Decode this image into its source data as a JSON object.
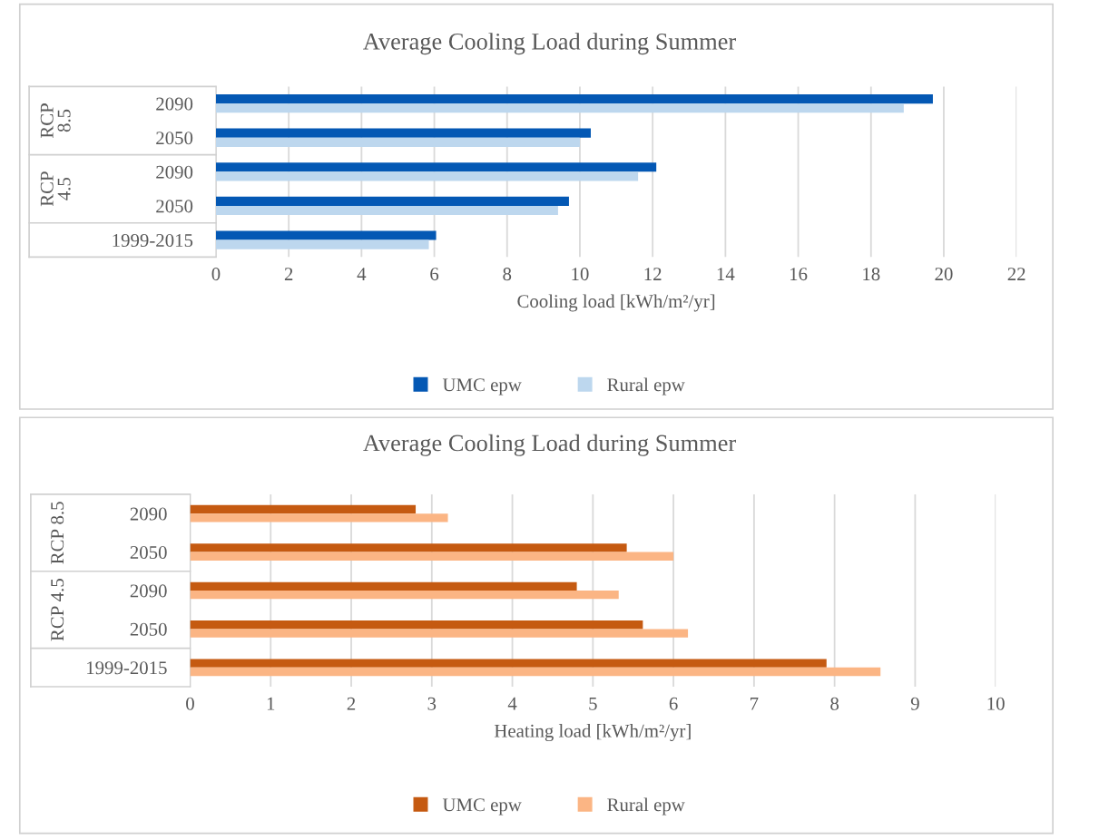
{
  "chart_data": [
    {
      "type": "bar",
      "orientation": "horizontal",
      "title": "Average Cooling Load during Summer",
      "xlabel": "Cooling load [kWh/m²/yr]",
      "categories": [
        "2090",
        "2050",
        "2090",
        "2050",
        "1999-2015"
      ],
      "annotations": [
        "RCP\n8.5",
        "RCP\n4.5"
      ],
      "series": [
        {
          "name": "UMC epw",
          "color": "#0458b4",
          "values": [
            19.7,
            10.3,
            12.1,
            9.7,
            6.05
          ]
        },
        {
          "name": "Rural epw",
          "color": "#bdd7ee",
          "values": [
            18.9,
            10.0,
            11.6,
            9.4,
            5.85
          ]
        }
      ],
      "xlim": [
        0,
        22
      ],
      "xticks": [
        0,
        2,
        4,
        6,
        8,
        10,
        12,
        14,
        16,
        18,
        20,
        22
      ],
      "grid": "x",
      "legend": "bottom"
    },
    {
      "type": "bar",
      "orientation": "horizontal",
      "title": "Average Cooling Load during Summer",
      "xlabel": "Heating load [kWh/m²/yr]",
      "categories": [
        "2090",
        "2050",
        "2090",
        "2050",
        "1999-2015"
      ],
      "annotations": [
        "RCP 8.5",
        "RCP 4.5"
      ],
      "series": [
        {
          "name": "UMC epw",
          "color": "#c55a11",
          "values": [
            2.8,
            5.42,
            4.8,
            5.62,
            7.9
          ]
        },
        {
          "name": "Rural epw",
          "color": "#fbb584",
          "values": [
            3.2,
            6.0,
            5.32,
            6.18,
            8.57
          ]
        }
      ],
      "xlim": [
        0,
        10
      ],
      "xticks": [
        0,
        1,
        2,
        3,
        4,
        5,
        6,
        7,
        8,
        9,
        10
      ],
      "grid": "x",
      "legend": "bottom"
    }
  ]
}
